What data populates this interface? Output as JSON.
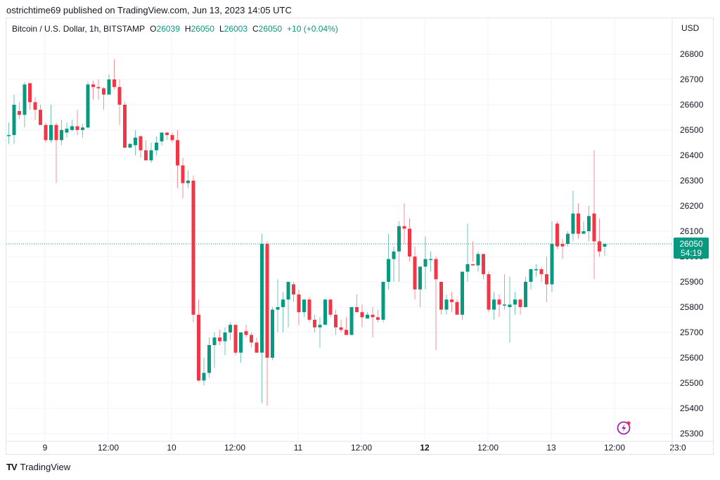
{
  "publisher": "ostrichtime69 published on TradingView.com, Jun 13, 2023 14:05 UTC",
  "legend": {
    "symbol": "Bitcoin / U.S. Dollar, 1h, BITSTAMP",
    "o_label": "O",
    "o": "26039",
    "h_label": "H",
    "h": "26050",
    "l_label": "L",
    "l": "26003",
    "c_label": "C",
    "c": "26050",
    "change": "+10 (+0.04%)"
  },
  "price_axis": {
    "currency": "USD",
    "ticks": [
      "26800",
      "26700",
      "26600",
      "26500",
      "26400",
      "26300",
      "26200",
      "26100",
      "26000",
      "25900",
      "25800",
      "25700",
      "25600",
      "25500",
      "25400",
      "25300"
    ],
    "last_price_label": "26050",
    "countdown": "54:19"
  },
  "time_axis": {
    "ticks": [
      {
        "label": "9",
        "bold": false
      },
      {
        "label": "12:00",
        "bold": false
      },
      {
        "label": "10",
        "bold": false
      },
      {
        "label": "12:00",
        "bold": false
      },
      {
        "label": "11",
        "bold": false
      },
      {
        "label": "12:00",
        "bold": false
      },
      {
        "label": "12",
        "bold": true
      },
      {
        "label": "12:00",
        "bold": false
      },
      {
        "label": "13",
        "bold": false
      },
      {
        "label": "12:00",
        "bold": false
      },
      {
        "label": "23:0",
        "bold": false
      }
    ]
  },
  "colors": {
    "up": "#089981",
    "down": "#f23645",
    "grid": "#f0f3fa",
    "last_price_bg": "#089981",
    "lightning": "#9c27b0",
    "lightning_dot": "#f23645"
  },
  "footer": {
    "brand": "TradingView",
    "logo_mark": "TV"
  },
  "chart_data": {
    "type": "candlestick",
    "title": "Bitcoin / U.S. Dollar, 1h, BITSTAMP",
    "xlabel": "",
    "ylabel": "USD",
    "ylim": [
      25280,
      26860
    ],
    "grid": true,
    "start": "Jun 8 17:00",
    "interval": "1h",
    "last_price": 26050,
    "candles": [
      [
        26480,
        26530,
        26445,
        26480
      ],
      [
        26480,
        26640,
        26445,
        26600
      ],
      [
        26575,
        26610,
        26545,
        26560
      ],
      [
        26560,
        26690,
        26510,
        26680
      ],
      [
        26685,
        26680,
        26580,
        26610
      ],
      [
        26610,
        26630,
        26540,
        26580
      ],
      [
        26580,
        26600,
        26520,
        26520
      ],
      [
        26520,
        26530,
        26450,
        26460
      ],
      [
        26460,
        26600,
        26450,
        26520
      ],
      [
        26520,
        26530,
        26290,
        26460
      ],
      [
        26460,
        26540,
        26440,
        26500
      ],
      [
        26490,
        26530,
        26470,
        26505
      ],
      [
        26500,
        26540,
        26495,
        26515
      ],
      [
        26515,
        26580,
        26480,
        26500
      ],
      [
        26500,
        26525,
        26470,
        26510
      ],
      [
        26510,
        26690,
        26505,
        26680
      ],
      [
        26680,
        26695,
        26620,
        26670
      ],
      [
        26670,
        26700,
        26620,
        26665
      ],
      [
        26665,
        26670,
        26580,
        26640
      ],
      [
        26640,
        26720,
        26640,
        26700
      ],
      [
        26700,
        26780,
        26660,
        26670
      ],
      [
        26670,
        26700,
        26520,
        26600
      ],
      [
        26600,
        26610,
        26440,
        26430
      ],
      [
        26430,
        26450,
        26430,
        26445
      ],
      [
        26440,
        26500,
        26400,
        26470
      ],
      [
        26475,
        26480,
        26390,
        26420
      ],
      [
        26420,
        26460,
        26380,
        26380
      ],
      [
        26380,
        26450,
        26370,
        26420
      ],
      [
        26420,
        26475,
        26400,
        26450
      ],
      [
        26455,
        26490,
        26440,
        26490
      ],
      [
        26490,
        26490,
        26460,
        26480
      ],
      [
        26480,
        26490,
        26450,
        26460
      ],
      [
        26460,
        26500,
        26270,
        26360
      ],
      [
        26360,
        26390,
        26230,
        26290
      ],
      [
        26290,
        26340,
        26270,
        26300
      ],
      [
        26300,
        26320,
        25740,
        25770
      ],
      [
        25770,
        25830,
        25505,
        25510
      ],
      [
        25510,
        25600,
        25490,
        25540
      ],
      [
        25540,
        25680,
        25520,
        25650
      ],
      [
        25650,
        25700,
        25560,
        25680
      ],
      [
        25680,
        25710,
        25650,
        25665
      ],
      [
        25665,
        25720,
        25610,
        25700
      ],
      [
        25700,
        25740,
        25670,
        25730
      ],
      [
        25730,
        25730,
        25610,
        25620
      ],
      [
        25620,
        25700,
        25580,
        25700
      ],
      [
        25705,
        25730,
        25680,
        25690
      ],
      [
        25690,
        25700,
        25640,
        25660
      ],
      [
        25660,
        25680,
        25620,
        25620
      ],
      [
        25620,
        26090,
        25420,
        26050
      ],
      [
        26050,
        26060,
        25410,
        25600
      ],
      [
        25600,
        25800,
        25590,
        25790
      ],
      [
        25790,
        25910,
        25700,
        25800
      ],
      [
        25800,
        25860,
        25700,
        25830
      ],
      [
        25830,
        25890,
        25720,
        25900
      ],
      [
        25890,
        25900,
        25820,
        25850
      ],
      [
        25850,
        25870,
        25730,
        25780
      ],
      [
        25780,
        25830,
        25760,
        25830
      ],
      [
        25830,
        25840,
        25740,
        25750
      ],
      [
        25750,
        25770,
        25700,
        25720
      ],
      [
        25720,
        25760,
        25640,
        25730
      ],
      [
        25730,
        25830,
        25730,
        25830
      ],
      [
        25830,
        25820,
        25760,
        25770
      ],
      [
        25770,
        25790,
        25690,
        25720
      ],
      [
        25720,
        25750,
        25700,
        25710
      ],
      [
        25710,
        25760,
        25700,
        25690
      ],
      [
        25690,
        25800,
        25690,
        25800
      ],
      [
        25800,
        25850,
        25790,
        25780
      ],
      [
        25780,
        25810,
        25720,
        25760
      ],
      [
        25755,
        25780,
        25760,
        25770
      ],
      [
        25770,
        25800,
        25680,
        25760
      ],
      [
        25760,
        25790,
        25740,
        25750
      ],
      [
        25750,
        25900,
        25740,
        25900
      ],
      [
        25900,
        26090,
        25870,
        25990
      ],
      [
        25990,
        26040,
        25900,
        26020
      ],
      [
        26020,
        26140,
        25900,
        26120
      ],
      [
        26120,
        26210,
        26050,
        26110
      ],
      [
        26110,
        26150,
        25980,
        26000
      ],
      [
        26000,
        26040,
        25830,
        25870
      ],
      [
        25870,
        25960,
        25800,
        25960
      ],
      [
        25960,
        26080,
        25870,
        25990
      ],
      [
        25990,
        26020,
        25940,
        25990
      ],
      [
        25990,
        26000,
        25630,
        25910
      ],
      [
        25900,
        25870,
        25770,
        25790
      ],
      [
        25790,
        25850,
        25770,
        25830
      ],
      [
        25830,
        25860,
        25780,
        25820
      ],
      [
        25820,
        25830,
        25780,
        25770
      ],
      [
        25770,
        25940,
        25750,
        25940
      ],
      [
        25940,
        26130,
        25900,
        25970
      ],
      [
        25970,
        26060,
        25980,
        25965
      ],
      [
        25965,
        26020,
        25940,
        26010
      ],
      [
        26010,
        26000,
        25910,
        25930
      ],
      [
        25930,
        25940,
        25780,
        25790
      ],
      [
        25790,
        25860,
        25750,
        25830
      ],
      [
        25830,
        25850,
        25760,
        25810
      ],
      [
        25810,
        25930,
        25790,
        25810
      ],
      [
        25800,
        25920,
        25660,
        25810
      ],
      [
        25810,
        25860,
        25770,
        25830
      ],
      [
        25830,
        25830,
        25770,
        25800
      ],
      [
        25800,
        25920,
        25800,
        25900
      ],
      [
        25900,
        25950,
        25870,
        25950
      ],
      [
        25950,
        25970,
        25920,
        25950
      ],
      [
        25950,
        25960,
        25900,
        25930
      ],
      [
        25930,
        26000,
        25820,
        25890
      ],
      [
        25890,
        26140,
        25860,
        26050
      ],
      [
        26130,
        26140,
        26030,
        26040
      ],
      [
        26050,
        26070,
        25990,
        26040
      ],
      [
        26050,
        26100,
        26040,
        26090
      ],
      [
        26090,
        26260,
        26060,
        26170
      ],
      [
        26170,
        26210,
        26070,
        26090
      ],
      [
        26090,
        26140,
        26090,
        26100
      ],
      [
        26100,
        26200,
        26060,
        26160
      ],
      [
        26170,
        26420,
        25910,
        26060
      ],
      [
        26060,
        26150,
        26000,
        26020
      ],
      [
        26039,
        26050,
        26003,
        26050
      ]
    ]
  }
}
